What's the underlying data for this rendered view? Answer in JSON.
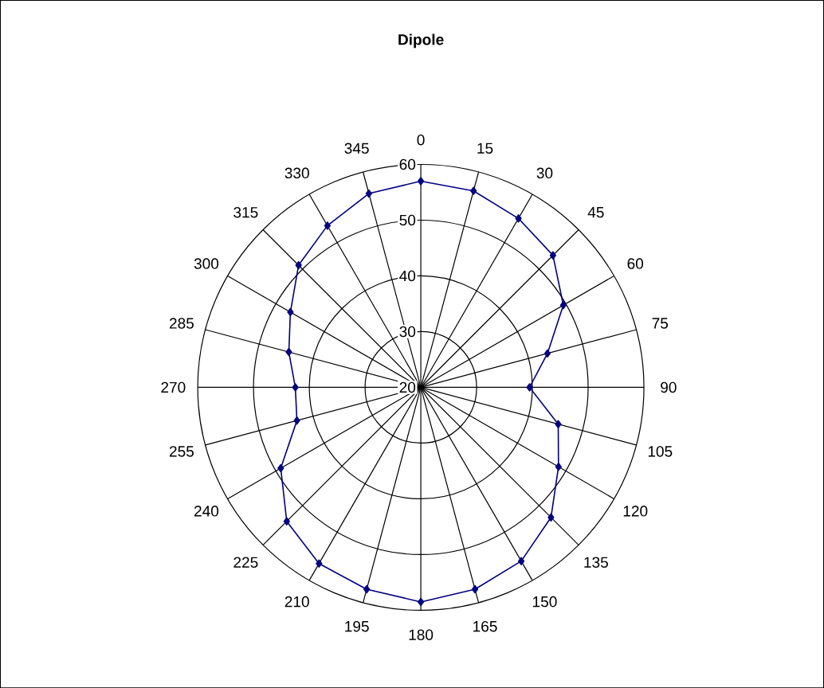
{
  "chart_data": {
    "type": "radar",
    "title": "Dipole",
    "categories": [
      "0",
      "15",
      "30",
      "45",
      "60",
      "75",
      "90",
      "105",
      "120",
      "135",
      "150",
      "165",
      "180",
      "195",
      "210",
      "225",
      "240",
      "255",
      "270",
      "285",
      "300",
      "315",
      "330",
      "345"
    ],
    "series": [
      {
        "color": "#000080",
        "values": [
          57,
          56.5,
          55,
          53.5,
          49.5,
          43.5,
          39.5,
          45.5,
          48.5,
          53,
          56,
          57.5,
          58.5,
          57.5,
          56.5,
          54,
          49,
          43,
          42.5,
          44.5,
          47,
          51,
          53.5,
          56
        ]
      }
    ],
    "ylim": [
      20,
      60
    ],
    "yticks": [
      20,
      30,
      40,
      50,
      60
    ],
    "grid": true,
    "marker": "diamond",
    "line_style": "solid"
  }
}
